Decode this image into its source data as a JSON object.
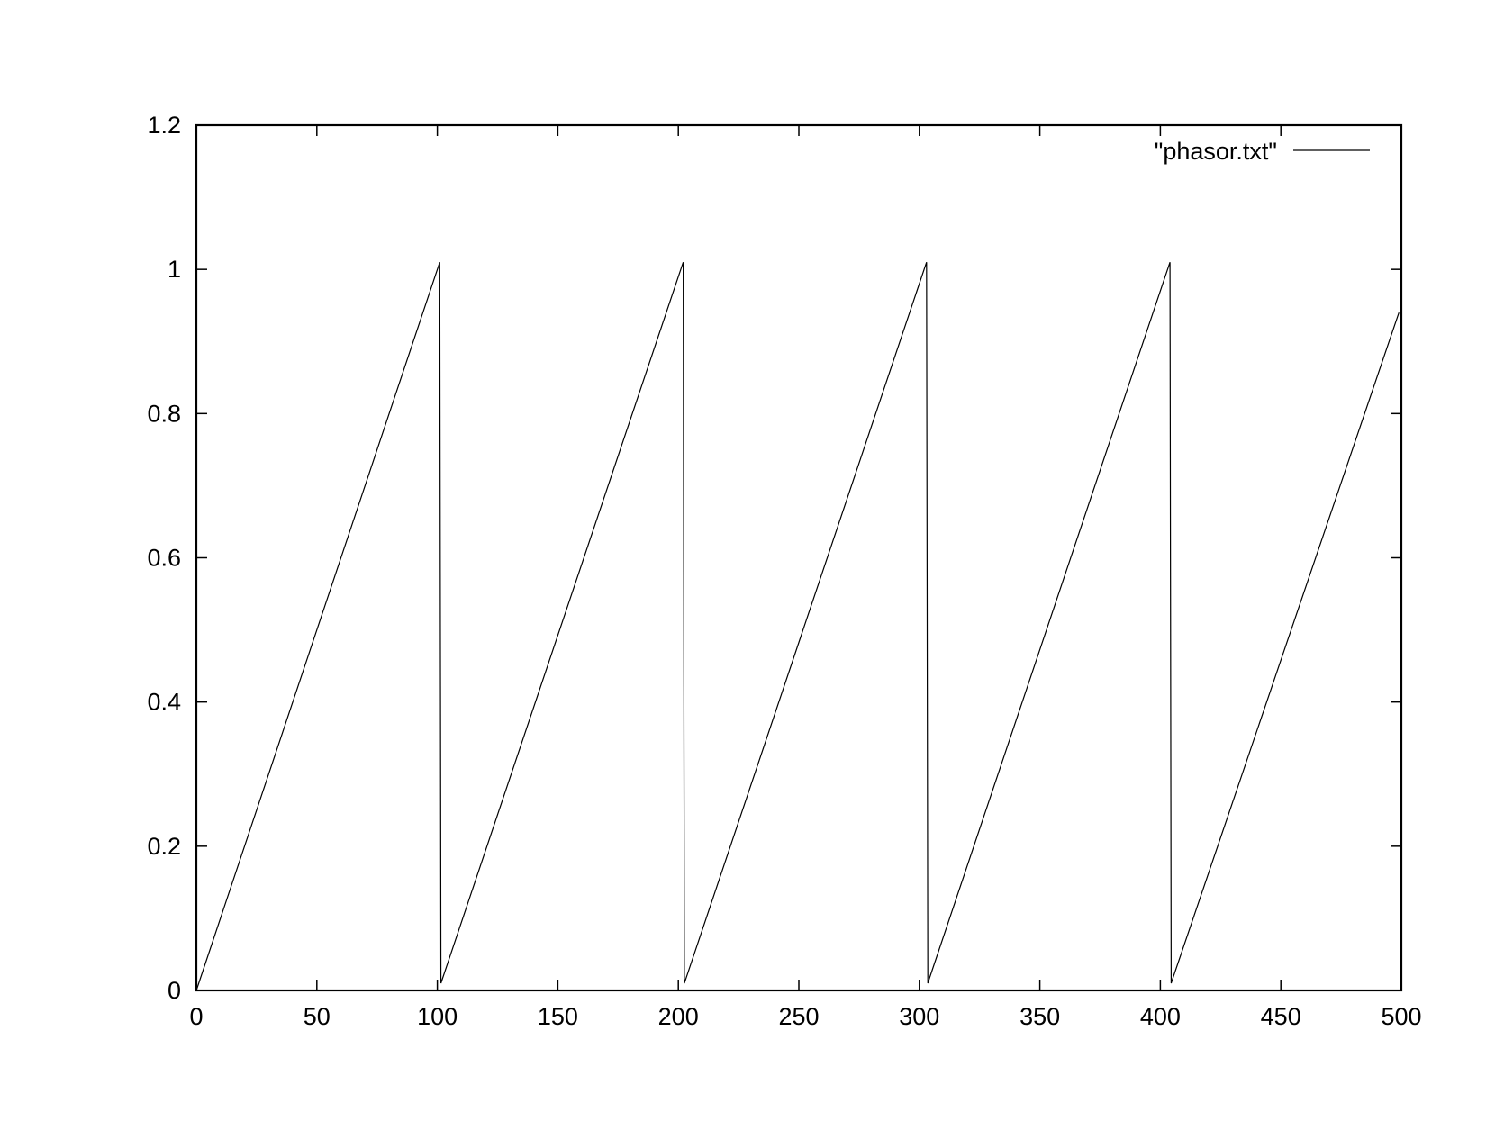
{
  "chart_data": {
    "type": "line",
    "title": "",
    "xlabel": "",
    "ylabel": "",
    "xlim": [
      0,
      500
    ],
    "ylim": [
      0,
      1.2
    ],
    "x_ticks": [
      0,
      50,
      100,
      150,
      200,
      250,
      300,
      350,
      400,
      450,
      500
    ],
    "y_ticks": [
      0,
      0.2,
      0.4,
      0.6,
      0.8,
      1,
      1.2
    ],
    "x_tick_labels": [
      "0",
      "50",
      "100",
      "150",
      "200",
      "250",
      "300",
      "350",
      "400",
      "450",
      "500"
    ],
    "y_tick_labels": [
      "0",
      "0.2",
      "0.4",
      "0.6",
      "0.8",
      "1",
      "1.2"
    ],
    "grid": false,
    "legend_position": "top-right",
    "series": [
      {
        "name": "\"phasor.txt\"",
        "color": "#000000",
        "x": [
          0,
          101,
          101.5,
          202,
          202.5,
          303,
          303.5,
          404,
          404.5,
          499
        ],
        "y": [
          0,
          1.01,
          0.01,
          1.01,
          0.01,
          1.01,
          0.01,
          1.01,
          0.01,
          0.94
        ]
      }
    ]
  }
}
